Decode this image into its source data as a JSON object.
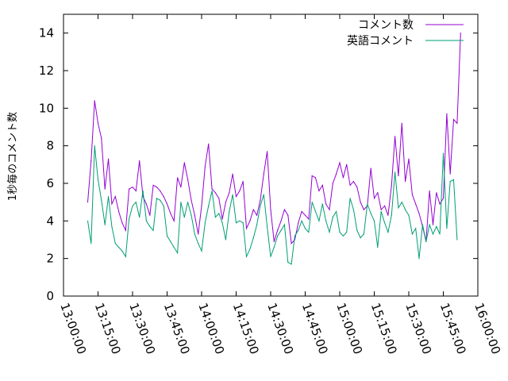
{
  "chart_data": {
    "type": "line",
    "title": "",
    "xlabel": "",
    "ylabel": "1秒毎のコメント数",
    "ylim": [
      0,
      15
    ],
    "yticks": [
      0,
      2,
      4,
      6,
      8,
      10,
      12,
      14
    ],
    "xlim": [
      "13:00:00",
      "16:00:00"
    ],
    "xticks": [
      "13:00:00",
      "13:15:00",
      "13:30:00",
      "13:45:00",
      "14:00:00",
      "14:15:00",
      "14:30:00",
      "14:45:00",
      "15:00:00",
      "15:15:00",
      "15:30:00",
      "15:45:00",
      "16:00:00"
    ],
    "x_start": "13:10:30",
    "x_step_seconds": 90,
    "grid": false,
    "legend_position": "top-right",
    "series": [
      {
        "name": "コメント数",
        "color": "#9400d3",
        "values": [
          5.0,
          7.2,
          10.4,
          9.2,
          8.4,
          5.7,
          7.3,
          4.9,
          5.3,
          4.5,
          3.9,
          3.5,
          5.7,
          5.8,
          5.6,
          7.2,
          5.3,
          4.9,
          4.3,
          5.9,
          5.8,
          5.6,
          5.3,
          4.9,
          4.4,
          4.0,
          6.3,
          5.8,
          7.1,
          6.2,
          5.1,
          4.3,
          3.3,
          4.8,
          6.9,
          8.1,
          5.7,
          5.5,
          5.2,
          4.1,
          5.0,
          5.5,
          6.5,
          5.3,
          5.6,
          6.1,
          3.6,
          4.0,
          4.6,
          4.3,
          5.1,
          6.5,
          7.7,
          4.6,
          2.9,
          3.5,
          4.0,
          4.6,
          4.3,
          2.8,
          3.0,
          3.9,
          4.5,
          4.3,
          4.1,
          6.4,
          6.3,
          5.6,
          5.9,
          4.9,
          4.6,
          6.0,
          6.5,
          7.1,
          6.3,
          7.0,
          5.9,
          6.1,
          5.8,
          5.0,
          4.6,
          4.8,
          6.8,
          5.2,
          5.5,
          4.6,
          4.8,
          4.3,
          5.9,
          8.5,
          6.4,
          9.2,
          6.1,
          7.3,
          5.4,
          4.9,
          4.4,
          3.7,
          2.9,
          5.6,
          3.8,
          5.5,
          4.9,
          5.2,
          9.7,
          6.5,
          9.4,
          9.2,
          14.0
        ]
      },
      {
        "name": "英語コメント",
        "color": "#009e73",
        "values": [
          4.0,
          2.8,
          8.0,
          6.2,
          5.1,
          3.8,
          5.3,
          3.7,
          2.8,
          2.6,
          2.4,
          2.1,
          4.1,
          4.8,
          5.0,
          4.2,
          5.6,
          4.0,
          3.7,
          3.5,
          5.2,
          5.1,
          4.8,
          3.2,
          2.9,
          2.6,
          2.3,
          5.0,
          4.2,
          5.0,
          4.3,
          3.3,
          2.8,
          2.4,
          3.9,
          4.8,
          5.6,
          4.2,
          4.4,
          3.9,
          3.0,
          4.5,
          5.4,
          3.9,
          4.0,
          3.9,
          2.1,
          2.5,
          3.1,
          3.8,
          4.8,
          5.4,
          3.7,
          2.1,
          2.6,
          3.2,
          3.5,
          3.8,
          1.8,
          1.7,
          3.2,
          3.5,
          4.0,
          3.6,
          3.4,
          5.0,
          4.5,
          4.0,
          4.9,
          4.0,
          3.4,
          4.2,
          4.5,
          3.4,
          3.2,
          3.4,
          5.2,
          4.6,
          3.5,
          3.1,
          3.3,
          4.9,
          4.4,
          4.0,
          2.6,
          4.5,
          3.9,
          3.4,
          4.3,
          6.6,
          4.7,
          5.0,
          4.6,
          4.3,
          3.3,
          3.6,
          2.0,
          3.8,
          2.9,
          3.8,
          3.3,
          3.7,
          3.3,
          7.6,
          3.6,
          6.1,
          6.2,
          3.0
        ]
      }
    ]
  }
}
